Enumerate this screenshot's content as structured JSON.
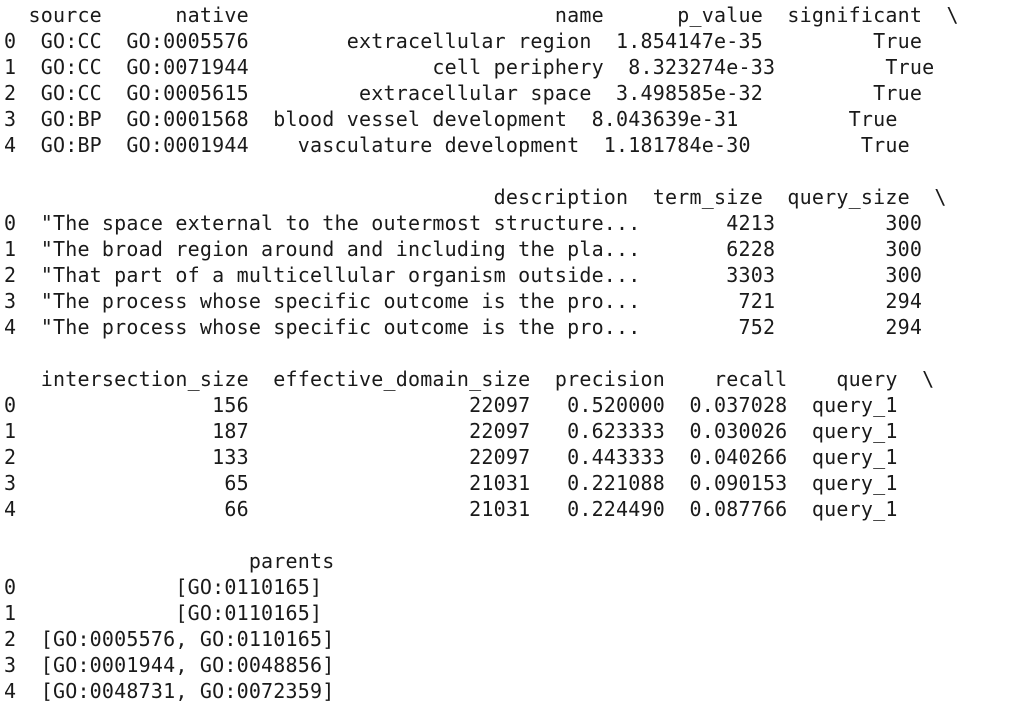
{
  "output_lines": [
    "  source      native                         name      p_value  significant  \\",
    "0  GO:CC  GO:0005576        extracellular region  1.854147e-35         True",
    "1  GO:CC  GO:0071944               cell periphery  8.323274e-33         True",
    "2  GO:CC  GO:0005615         extracellular space  3.498585e-32         True",
    "3  GO:BP  GO:0001568  blood vessel development  8.043639e-31         True",
    "4  GO:BP  GO:0001944    vasculature development  1.181784e-30         True",
    "",
    "                                        description  term_size  query_size  \\",
    "0  \"The space external to the outermost structure...       4213         300",
    "1  \"The broad region around and including the pla...       6228         300",
    "2  \"That part of a multicellular organism outside...       3303         300",
    "3  \"The process whose specific outcome is the pro...        721         294",
    "4  \"The process whose specific outcome is the pro...        752         294",
    "",
    "   intersection_size  effective_domain_size  precision    recall    query  \\",
    "0                156                  22097   0.520000  0.037028  query_1",
    "1                187                  22097   0.623333  0.030026  query_1",
    "2                133                  22097   0.443333  0.040266  query_1",
    "3                 65                  21031   0.221088  0.090153  query_1",
    "4                 66                  21031   0.224490  0.087766  query_1",
    "",
    "                    parents",
    "0             [GO:0110165]",
    "1             [GO:0110165]",
    "2  [GO:0005576, GO:0110165]",
    "3  [GO:0001944, GO:0048856]",
    "4  [GO:0048731, GO:0072359]"
  ]
}
